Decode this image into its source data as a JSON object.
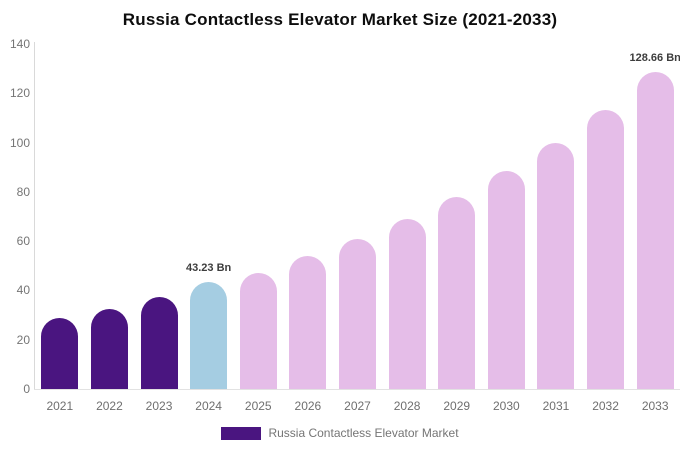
{
  "title": "Russia Contactless Elevator Market Size (2021-2033)",
  "legend": {
    "label": "Russia Contactless Elevator Market",
    "swatch_color": "#4A1580"
  },
  "colors": {
    "historical_bar": "#4A1580",
    "current_bar": "#A5CDE2",
    "forecast_bar": "#E5BDE8",
    "axis_line": "#D9D9D9",
    "tick_text": "#757575",
    "annotation_text": "#3D3D3D",
    "title_text": "#0D0D0D",
    "background": "#FFFFFF"
  },
  "chart_data": {
    "type": "bar",
    "title": "Russia Contactless Elevator Market Size (2021-2033)",
    "xlabel": "",
    "ylabel": "",
    "unit": "Bn",
    "categories": [
      "2021",
      "2022",
      "2023",
      "2024",
      "2025",
      "2026",
      "2027",
      "2028",
      "2029",
      "2030",
      "2031",
      "2032",
      "2033"
    ],
    "values": [
      28.8,
      32.5,
      37.4,
      43.23,
      47.2,
      54.0,
      61.0,
      69.0,
      78.0,
      88.5,
      99.9,
      113.2,
      128.66
    ],
    "roles": [
      "historical",
      "historical",
      "historical",
      "current",
      "forecast",
      "forecast",
      "forecast",
      "forecast",
      "forecast",
      "forecast",
      "forecast",
      "forecast",
      "forecast"
    ],
    "annotations": [
      {
        "category": "2024",
        "text": "43.23 Bn"
      },
      {
        "category": "2033",
        "text": "128.66 Bn"
      }
    ],
    "ylim": [
      0,
      140
    ],
    "ytick_step": 20,
    "ytick_labels": [
      "0",
      "20",
      "40",
      "60",
      "80",
      "100",
      "120",
      "140"
    ],
    "grid": false,
    "legend_position": "bottom",
    "series_name": "Russia Contactless Elevator Market"
  }
}
